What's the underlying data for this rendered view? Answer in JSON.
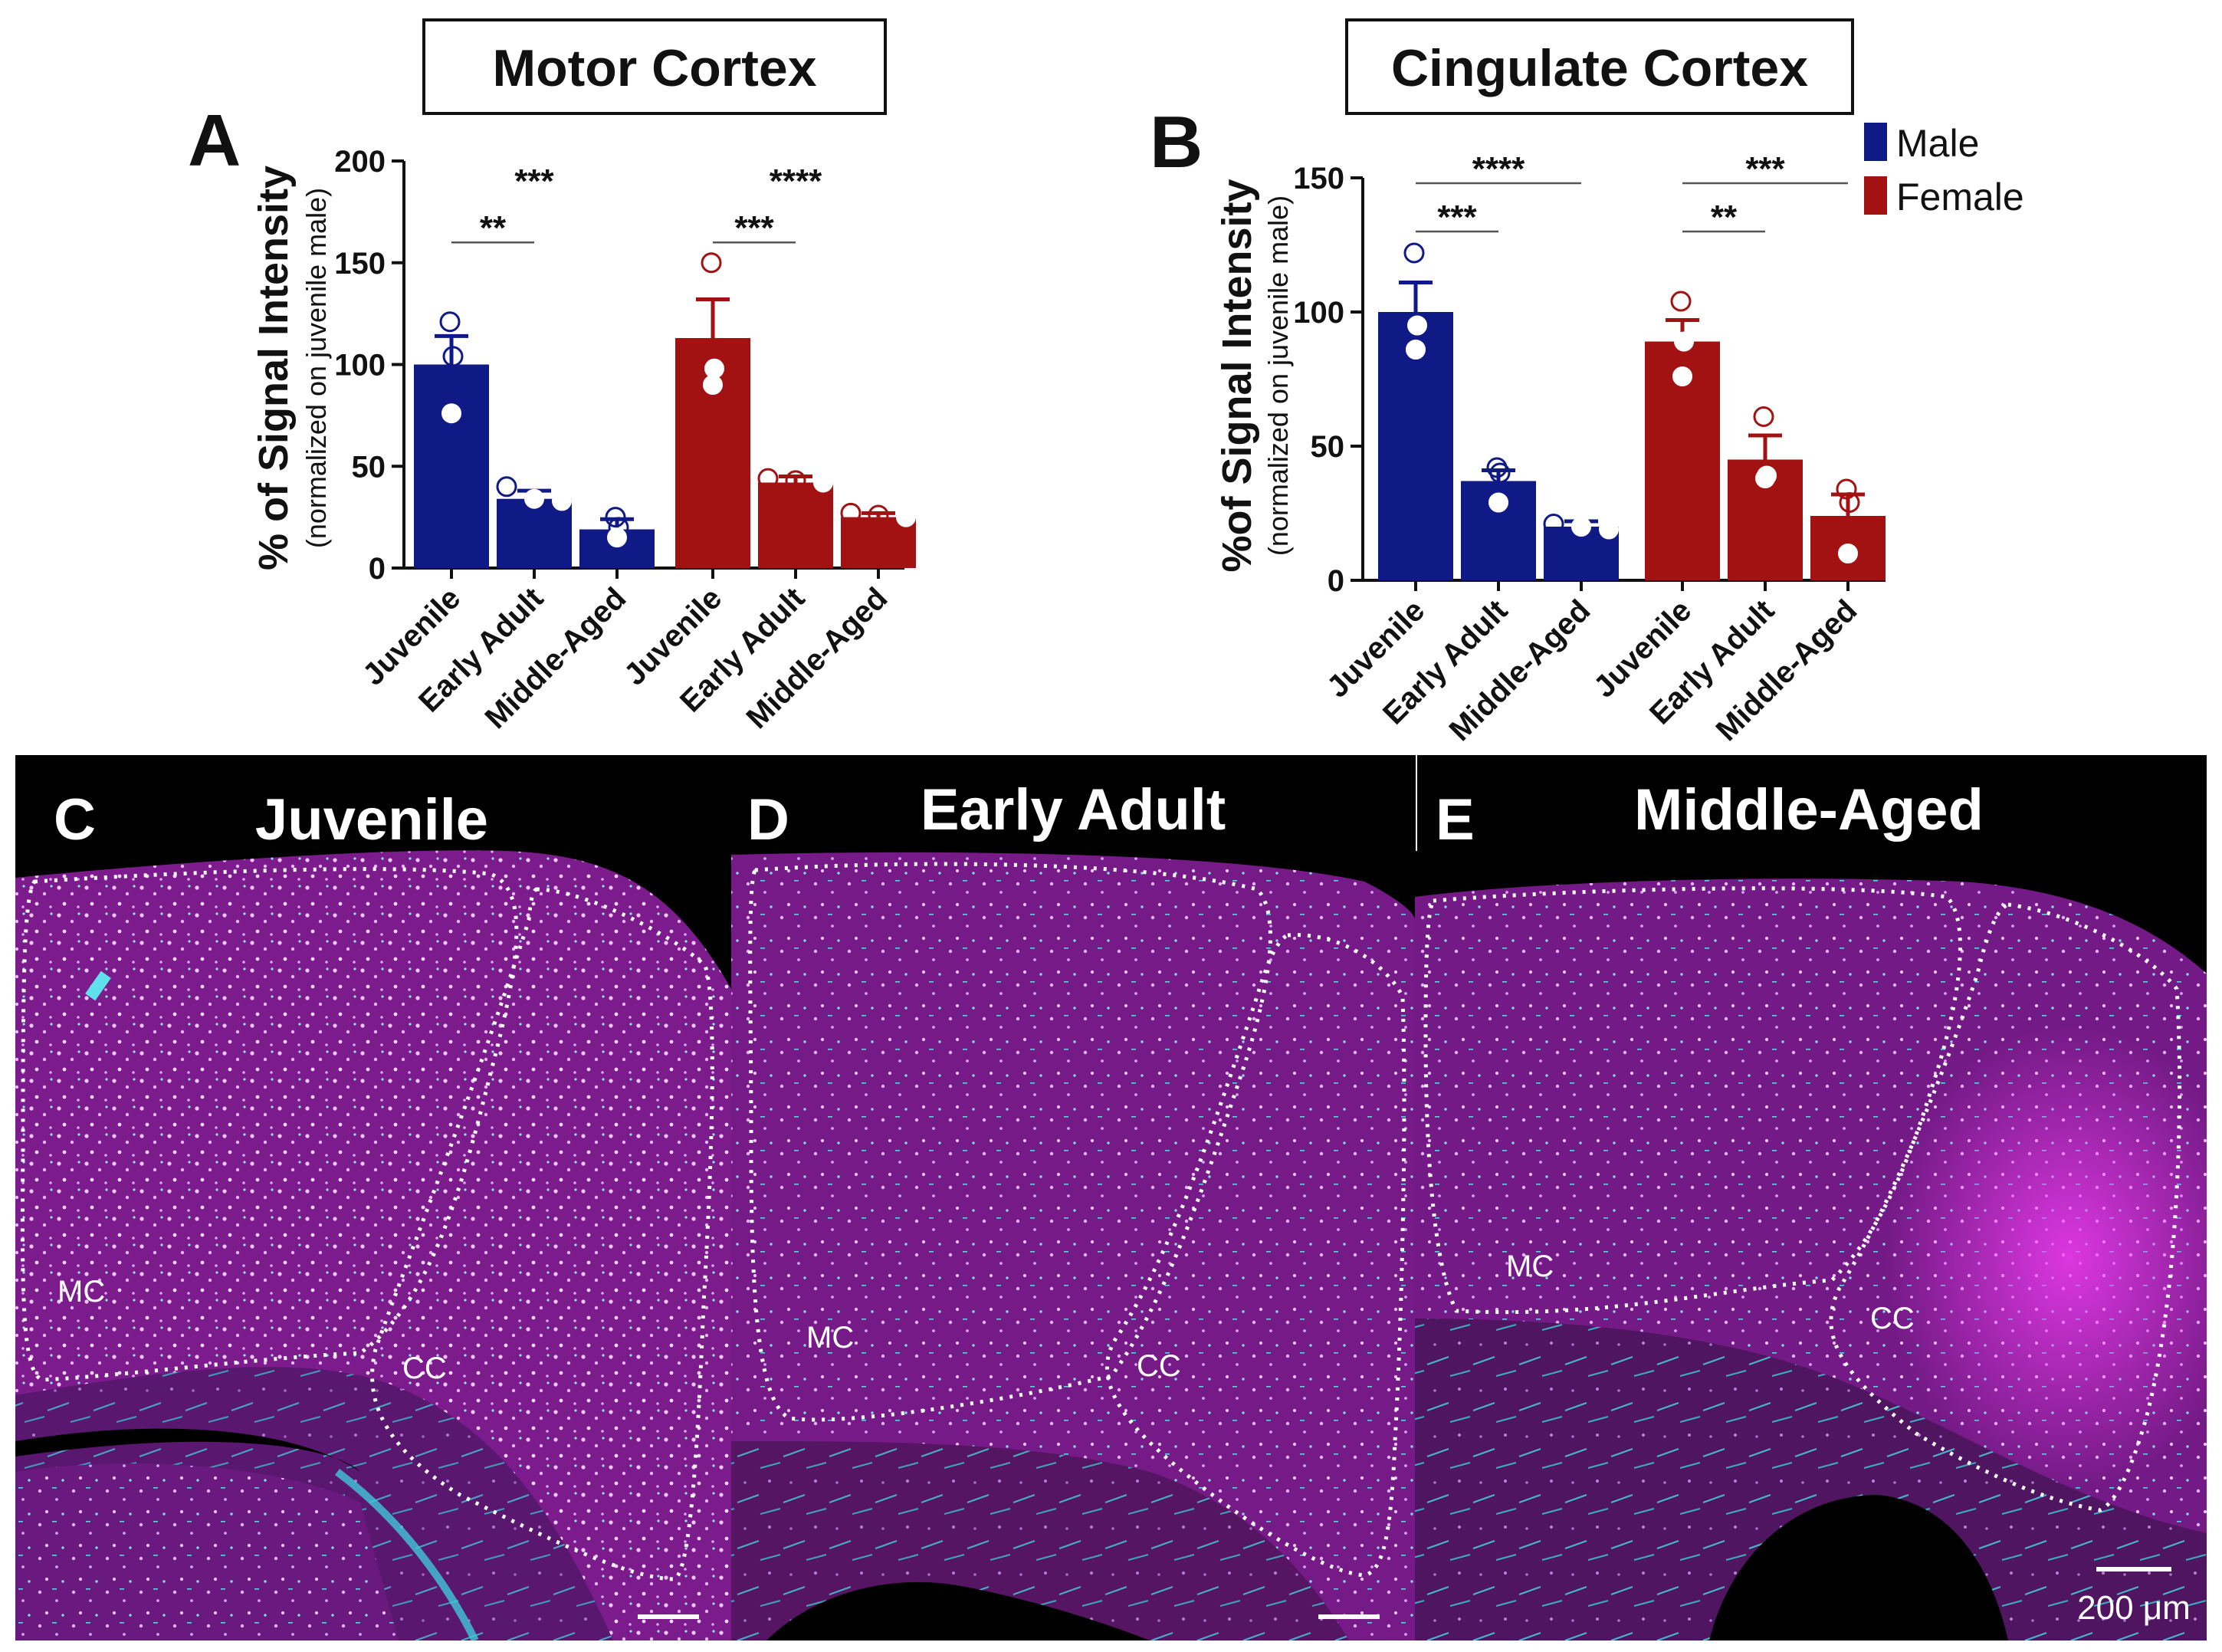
{
  "colors": {
    "male": "#101a86",
    "female": "#a31212",
    "axis": "#111111",
    "tissue": "#7a1a8a",
    "cyan": "#33ccdd",
    "dotted": "#ffffff"
  },
  "charts": [
    {
      "panel_letter": "A",
      "heading": "Motor Cortex",
      "ylabel_main": "% of Signal Intensity",
      "ylabel_sub": "(normalized on juvenile male)",
      "chart_data": {
        "type": "bar",
        "title": "Motor Cortex",
        "ylabel": "% of Signal Intensity (normalized on juvenile male)",
        "categories": [
          "Juvenile",
          "Early Adult",
          "Middle-Aged",
          "Juvenile",
          "Early Adult",
          "Middle-Aged"
        ],
        "series_names": [
          "Male",
          "Male",
          "Male",
          "Female",
          "Female",
          "Female"
        ],
        "values": [
          100,
          34,
          19,
          113,
          42,
          25
        ],
        "errors": [
          14,
          4,
          5,
          19,
          3,
          2
        ],
        "points": [
          [
            121,
            104,
            76
          ],
          [
            40,
            34,
            33
          ],
          [
            25,
            20,
            15
          ],
          [
            150,
            98,
            90
          ],
          [
            44,
            43,
            42
          ],
          [
            27,
            26,
            25
          ]
        ],
        "ylim": [
          0,
          200
        ],
        "yticks": [
          0,
          50,
          100,
          150,
          200
        ],
        "significance": [
          {
            "from": 0,
            "to": 1,
            "label": "**",
            "level": 160
          },
          {
            "from": 0,
            "to": 2,
            "label": "***",
            "level": 183,
            "line": false
          },
          {
            "from": 3,
            "to": 4,
            "label": "***",
            "level": 160
          },
          {
            "from": 3,
            "to": 5,
            "label": "****",
            "level": 183,
            "line": false
          }
        ]
      }
    },
    {
      "panel_letter": "B",
      "heading": "Cingulate Cortex",
      "ylabel_main": "%of Signal Intensity",
      "ylabel_sub": "(normalized on  juvenile male)",
      "chart_data": {
        "type": "bar",
        "title": "Cingulate Cortex",
        "ylabel": "%of Signal Intensity (normalized on juvenile male)",
        "categories": [
          "Juvenile",
          "Early Adult",
          "Middle-Aged",
          "Juvenile",
          "Early Adult",
          "Middle-Aged"
        ],
        "series_names": [
          "Male",
          "Male",
          "Male",
          "Female",
          "Female",
          "Female"
        ],
        "values": [
          100,
          37,
          20,
          89,
          45,
          24
        ],
        "errors": [
          11,
          4,
          2,
          8,
          9,
          8
        ],
        "points": [
          [
            122,
            95,
            86
          ],
          [
            42,
            40,
            29
          ],
          [
            21,
            20,
            19
          ],
          [
            104,
            89,
            76
          ],
          [
            61,
            39,
            38
          ],
          [
            34,
            29,
            10
          ]
        ],
        "ylim": [
          0,
          150
        ],
        "yticks": [
          0,
          50,
          100,
          150
        ],
        "significance": [
          {
            "from": 0,
            "to": 1,
            "label": "***",
            "level": 130
          },
          {
            "from": 0,
            "to": 2,
            "label": "****",
            "level": 148
          },
          {
            "from": 3,
            "to": 4,
            "label": "**",
            "level": 130
          },
          {
            "from": 3,
            "to": 5,
            "label": "***",
            "level": 148
          }
        ]
      }
    }
  ],
  "legend": [
    {
      "label": "Male"
    },
    {
      "label": "Female"
    }
  ],
  "micrographs": [
    {
      "letter": "C",
      "title": "Juvenile",
      "mc": "MC",
      "cc": "CC"
    },
    {
      "letter": "D",
      "title": "Early Adult",
      "mc": "MC",
      "cc": "CC"
    },
    {
      "letter": "E",
      "title": "Middle-Aged",
      "mc": "MC",
      "cc": "CC"
    }
  ],
  "scale_bar_label": "200 μm"
}
